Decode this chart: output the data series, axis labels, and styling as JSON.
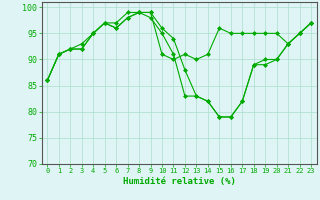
{
  "series": [
    [
      86,
      91,
      92,
      92,
      95,
      97,
      96,
      98,
      99,
      99,
      91,
      90,
      91,
      90,
      91,
      96,
      95,
      95,
      95,
      95,
      95,
      93,
      95,
      97
    ],
    [
      86,
      91,
      92,
      93,
      95,
      97,
      97,
      99,
      99,
      99,
      96,
      94,
      88,
      83,
      82,
      79,
      79,
      82,
      89,
      90,
      90,
      93,
      95,
      97
    ],
    [
      86,
      91,
      92,
      92,
      95,
      97,
      96,
      98,
      99,
      98,
      95,
      91,
      83,
      83,
      82,
      79,
      79,
      82,
      89,
      89,
      90,
      93,
      95,
      97
    ]
  ],
  "x": [
    0,
    1,
    2,
    3,
    4,
    5,
    6,
    7,
    8,
    9,
    10,
    11,
    12,
    13,
    14,
    15,
    16,
    17,
    18,
    19,
    20,
    21,
    22,
    23
  ],
  "xlabel": "Humidité relative (%)",
  "ylim": [
    70,
    101
  ],
  "yticks": [
    70,
    75,
    80,
    85,
    90,
    95,
    100
  ],
  "xlim": [
    -0.5,
    23.5
  ],
  "line_color": "#00aa00",
  "marker": "D",
  "markersize": 2,
  "bg_color": "#dff5f5",
  "grid_color": "#aaddcc",
  "axis_color": "#555555",
  "tick_color": "#00aa00",
  "label_color": "#00aa00",
  "tick_fontsize": 5,
  "label_fontsize": 6.5
}
